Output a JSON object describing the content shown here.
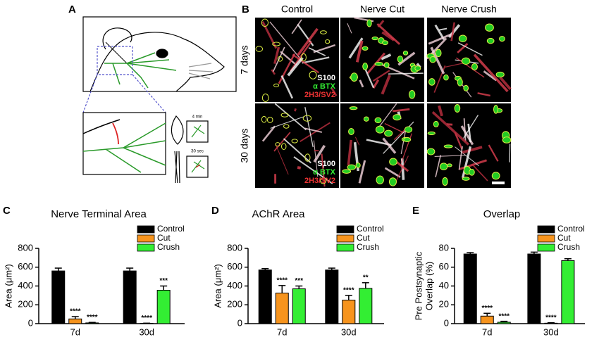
{
  "panels": {
    "labels": [
      "A",
      "B",
      "C",
      "D",
      "E"
    ],
    "schematic": {
      "timer_labels": [
        "4 min",
        "30 sec"
      ]
    },
    "micrographs": {
      "columns": [
        "Control",
        "Nerve Cut",
        "Nerve Crush"
      ],
      "rows": [
        "7 days",
        "30 days"
      ],
      "stain_legend": [
        "S100",
        "α BTX",
        "2H3/SV2"
      ]
    }
  },
  "chart_data": [
    {
      "type": "bar",
      "title": "Nerve Terminal Area",
      "ylabel": [
        "Area (μm²)"
      ],
      "categories": [
        "7d",
        "30d"
      ],
      "ylim": [
        0,
        800
      ],
      "yticks": [
        0,
        200,
        400,
        600,
        800
      ],
      "series": [
        {
          "name": "Control",
          "color": "#000000",
          "values": [
            560,
            560
          ],
          "errors": [
            30,
            30
          ]
        },
        {
          "name": "Cut",
          "color": "#f7941d",
          "values": [
            50,
            3
          ],
          "errors": [
            25,
            2
          ],
          "significance": [
            "****",
            "****"
          ]
        },
        {
          "name": "Crush",
          "color": "#33ee33",
          "values": [
            8,
            355
          ],
          "errors": [
            5,
            45
          ],
          "significance": [
            "****",
            "***"
          ]
        }
      ]
    },
    {
      "type": "bar",
      "title": "AChR Area",
      "ylabel": [
        "Area (μm²)"
      ],
      "categories": [
        "7d",
        "30d"
      ],
      "ylim": [
        0,
        800
      ],
      "yticks": [
        0,
        200,
        400,
        600,
        800
      ],
      "series": [
        {
          "name": "Control",
          "color": "#000000",
          "values": [
            570,
            570
          ],
          "errors": [
            15,
            20
          ]
        },
        {
          "name": "Cut",
          "color": "#f7941d",
          "values": [
            325,
            250
          ],
          "errors": [
            80,
            50
          ],
          "significance": [
            "****",
            "****"
          ]
        },
        {
          "name": "Crush",
          "color": "#33ee33",
          "values": [
            370,
            375
          ],
          "errors": [
            30,
            60
          ],
          "significance": [
            "***",
            "**"
          ]
        }
      ]
    },
    {
      "type": "bar",
      "title": "Overlap",
      "ylabel": [
        "Pre Postsynaptic",
        "Overlap (%)"
      ],
      "categories": [
        "7d",
        "30d"
      ],
      "ylim": [
        0,
        80
      ],
      "yticks": [
        0,
        20,
        40,
        60,
        80
      ],
      "series": [
        {
          "name": "Control",
          "color": "#000000",
          "values": [
            74,
            74
          ],
          "errors": [
            1.5,
            2
          ]
        },
        {
          "name": "Cut",
          "color": "#f7941d",
          "values": [
            8,
            0.5
          ],
          "errors": [
            3,
            0.5
          ],
          "significance": [
            "****",
            "****"
          ]
        },
        {
          "name": "Crush",
          "color": "#33ee33",
          "values": [
            1.5,
            67
          ],
          "errors": [
            1,
            2
          ],
          "significance": [
            "****",
            null
          ]
        }
      ]
    }
  ]
}
